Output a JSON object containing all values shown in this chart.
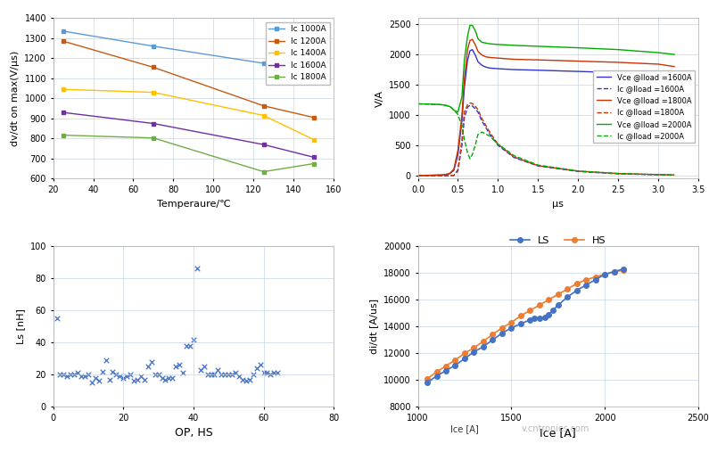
{
  "plot1": {
    "xlabel": "Temperaure/℃",
    "ylabel": "dv/dt on max(V/μs)",
    "ylim": [
      600,
      1400
    ],
    "xlim": [
      20,
      160
    ],
    "xticks": [
      20,
      40,
      60,
      80,
      100,
      120,
      140,
      160
    ],
    "yticks": [
      600,
      700,
      800,
      900,
      1000,
      1100,
      1200,
      1300,
      1400
    ],
    "series": [
      {
        "label": "Ic 1000A",
        "color": "#5B9BD5",
        "x": [
          25,
          70,
          125,
          150
        ],
        "y": [
          1335,
          1260,
          1175,
          1155
        ]
      },
      {
        "label": "Ic 1200A",
        "color": "#C55A11",
        "x": [
          25,
          70,
          125,
          150
        ],
        "y": [
          1285,
          1155,
          963,
          905
        ]
      },
      {
        "label": "Ic 1400A",
        "color": "#FFC000",
        "x": [
          25,
          70,
          125,
          150
        ],
        "y": [
          1045,
          1030,
          915,
          795
        ]
      },
      {
        "label": "Ic 1600A",
        "color": "#7030A0",
        "x": [
          25,
          70,
          125,
          150
        ],
        "y": [
          930,
          875,
          770,
          707
        ]
      },
      {
        "label": "Ic 1800A",
        "color": "#70AD47",
        "x": [
          25,
          70,
          125,
          150
        ],
        "y": [
          817,
          803,
          635,
          675
        ]
      }
    ]
  },
  "plot2": {
    "xlabel": "μs",
    "ylabel": "V/A",
    "ylim": [
      -50,
      2600
    ],
    "xlim": [
      0,
      3.5
    ],
    "xticks": [
      0,
      0.5,
      1.0,
      1.5,
      2.0,
      2.5,
      3.0,
      3.5
    ],
    "yticks": [
      0,
      500,
      1000,
      1500,
      2000,
      2500
    ],
    "series": [
      {
        "label": "Vce @Iload =1600A",
        "color": "#3333CC",
        "linestyle": "-",
        "x": [
          0.0,
          0.05,
          0.1,
          0.2,
          0.3,
          0.35,
          0.4,
          0.45,
          0.5,
          0.55,
          0.58,
          0.62,
          0.65,
          0.68,
          0.72,
          0.75,
          0.8,
          0.85,
          0.9,
          1.0,
          1.2,
          1.5,
          2.0,
          2.5,
          3.0,
          3.2
        ],
        "y": [
          5,
          5,
          5,
          8,
          12,
          18,
          35,
          90,
          350,
          900,
          1450,
          1900,
          2060,
          2080,
          1980,
          1880,
          1820,
          1790,
          1775,
          1765,
          1750,
          1740,
          1720,
          1700,
          1670,
          1620
        ]
      },
      {
        "label": "Ic @Iload =1600A",
        "color": "#3333CC",
        "linestyle": "--",
        "x": [
          0.0,
          0.05,
          0.1,
          0.2,
          0.3,
          0.35,
          0.4,
          0.45,
          0.5,
          0.55,
          0.58,
          0.62,
          0.65,
          0.68,
          0.72,
          0.75,
          0.8,
          0.9,
          1.0,
          1.2,
          1.5,
          2.0,
          2.5,
          3.0,
          3.2
        ],
        "y": [
          0,
          0,
          0,
          0,
          0,
          0,
          0,
          5,
          80,
          500,
          950,
          1130,
          1160,
          1150,
          1100,
          1050,
          900,
          680,
          500,
          300,
          160,
          70,
          30,
          15,
          10
        ]
      },
      {
        "label": "Vce @Iload =1800A",
        "color": "#CC3300",
        "linestyle": "-",
        "x": [
          0.0,
          0.05,
          0.1,
          0.2,
          0.3,
          0.35,
          0.4,
          0.45,
          0.5,
          0.55,
          0.58,
          0.62,
          0.65,
          0.68,
          0.72,
          0.75,
          0.8,
          0.85,
          0.9,
          1.0,
          1.2,
          1.5,
          2.0,
          2.5,
          3.0,
          3.2
        ],
        "y": [
          5,
          5,
          5,
          8,
          12,
          20,
          40,
          110,
          420,
          1000,
          1600,
          2080,
          2230,
          2250,
          2150,
          2050,
          1990,
          1960,
          1950,
          1940,
          1920,
          1910,
          1890,
          1870,
          1840,
          1800
        ]
      },
      {
        "label": "Ic @Iload =1800A",
        "color": "#CC3300",
        "linestyle": "--",
        "x": [
          0.0,
          0.05,
          0.1,
          0.2,
          0.3,
          0.35,
          0.4,
          0.45,
          0.5,
          0.55,
          0.58,
          0.62,
          0.65,
          0.68,
          0.72,
          0.75,
          0.8,
          0.9,
          1.0,
          1.2,
          1.5,
          2.0,
          2.5,
          3.0,
          3.2
        ],
        "y": [
          0,
          0,
          0,
          0,
          0,
          0,
          0,
          5,
          100,
          580,
          1050,
          1170,
          1200,
          1190,
          1140,
          1090,
          940,
          710,
          520,
          310,
          165,
          75,
          35,
          18,
          12
        ]
      },
      {
        "label": "Vce @Iload =2000A",
        "color": "#00AA00",
        "linestyle": "-",
        "x": [
          0.0,
          0.05,
          0.1,
          0.15,
          0.2,
          0.25,
          0.3,
          0.35,
          0.4,
          0.42,
          0.45,
          0.5,
          0.55,
          0.58,
          0.62,
          0.65,
          0.68,
          0.72,
          0.75,
          0.8,
          0.9,
          1.0,
          1.2,
          1.5,
          2.0,
          2.5,
          3.0,
          3.2
        ],
        "y": [
          1185,
          1183,
          1182,
          1180,
          1178,
          1175,
          1170,
          1160,
          1140,
          1120,
          1080,
          1050,
          1300,
          1900,
          2300,
          2480,
          2480,
          2380,
          2260,
          2200,
          2175,
          2165,
          2150,
          2135,
          2110,
          2080,
          2030,
          2000
        ]
      },
      {
        "label": "Ic @Iload =2000A",
        "color": "#00AA00",
        "linestyle": "--",
        "x": [
          0.0,
          0.05,
          0.1,
          0.15,
          0.2,
          0.25,
          0.3,
          0.35,
          0.4,
          0.42,
          0.45,
          0.5,
          0.55,
          0.58,
          0.62,
          0.65,
          0.68,
          0.72,
          0.75,
          0.8,
          0.9,
          1.0,
          1.2,
          1.5,
          2.0,
          2.5,
          3.0,
          3.2
        ],
        "y": [
          1185,
          1183,
          1182,
          1180,
          1178,
          1175,
          1170,
          1160,
          1140,
          1120,
          1080,
          1010,
          820,
          600,
          380,
          280,
          350,
          520,
          680,
          720,
          650,
          520,
          330,
          175,
          78,
          37,
          18,
          12
        ]
      }
    ]
  },
  "plot3": {
    "xlabel": "OP, HS",
    "ylabel": "Ls [nH]",
    "ylim": [
      0,
      100
    ],
    "xlim": [
      0,
      80
    ],
    "xticks": [
      0,
      20,
      40,
      60,
      80
    ],
    "yticks": [
      0,
      20,
      40,
      60,
      80,
      100
    ],
    "scatter_x": [
      1,
      2,
      3,
      4,
      5,
      6,
      7,
      8,
      9,
      10,
      11,
      12,
      13,
      14,
      15,
      16,
      17,
      18,
      19,
      20,
      21,
      22,
      23,
      24,
      25,
      26,
      27,
      28,
      29,
      30,
      31,
      32,
      33,
      34,
      35,
      36,
      37,
      38,
      39,
      40,
      41,
      42,
      43,
      44,
      45,
      46,
      47,
      48,
      49,
      50,
      51,
      52,
      53,
      54,
      55,
      56,
      57,
      58,
      59,
      60,
      61,
      62,
      63,
      64
    ],
    "scatter_y": [
      55,
      20,
      20,
      19,
      20,
      20,
      21,
      19,
      19,
      20,
      15,
      18,
      16,
      22,
      29,
      17,
      22,
      20,
      19,
      18,
      19,
      20,
      16,
      17,
      19,
      17,
      25,
      28,
      20,
      20,
      18,
      17,
      18,
      18,
      25,
      26,
      21,
      38,
      38,
      42,
      86,
      23,
      25,
      20,
      20,
      20,
      23,
      20,
      20,
      20,
      20,
      21,
      19,
      17,
      16,
      17,
      20,
      24,
      26,
      21,
      21,
      20,
      21,
      21
    ],
    "color": "#4472C4"
  },
  "plot4": {
    "xlabel": "Ice [A]",
    "ylabel": "di/dt [A/us]",
    "ylim": [
      8000,
      20000
    ],
    "xlim": [
      1000,
      2500
    ],
    "xticks": [
      1000,
      1500,
      2000,
      2500
    ],
    "yticks": [
      8000,
      10000,
      12000,
      14000,
      16000,
      18000,
      20000
    ],
    "series_ls": {
      "label": "LS",
      "color": "#4472C4",
      "x": [
        1050,
        1100,
        1150,
        1200,
        1250,
        1300,
        1350,
        1400,
        1450,
        1500,
        1550,
        1600,
        1620,
        1650,
        1680,
        1700,
        1720,
        1750,
        1800,
        1850,
        1900,
        1950,
        2000,
        2050,
        2100
      ],
      "y": [
        9800,
        10300,
        10700,
        11100,
        11600,
        12100,
        12500,
        13000,
        13500,
        13900,
        14200,
        14500,
        14600,
        14600,
        14700,
        14900,
        15200,
        15600,
        16200,
        16700,
        17100,
        17500,
        17900,
        18100,
        18300
      ]
    },
    "series_hs": {
      "label": "HS",
      "color": "#ED7D31",
      "x": [
        1050,
        1100,
        1150,
        1200,
        1250,
        1300,
        1350,
        1400,
        1450,
        1500,
        1550,
        1600,
        1650,
        1700,
        1750,
        1800,
        1850,
        1900,
        1950,
        2000,
        2050,
        2100
      ],
      "y": [
        10100,
        10600,
        11050,
        11500,
        12000,
        12400,
        12900,
        13400,
        13900,
        14300,
        14800,
        15200,
        15600,
        16000,
        16400,
        16800,
        17200,
        17500,
        17700,
        17900,
        18100,
        18200
      ]
    }
  },
  "bg_color": "#FFFFFF",
  "grid_color": "#C8D4E8",
  "font_size": 8
}
